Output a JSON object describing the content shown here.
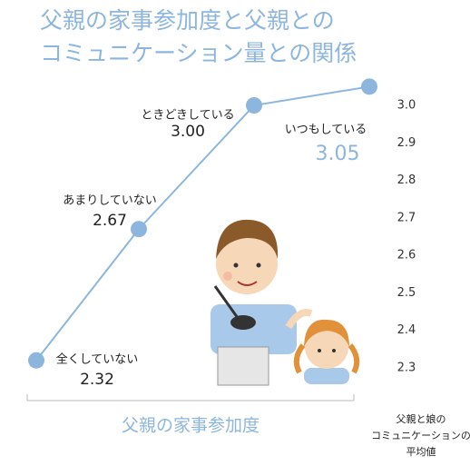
{
  "chart_data": {
    "type": "line",
    "title": [
      "父親の家事参加度と父親との",
      "コミュニケーション量との関係"
    ],
    "categories": [
      "全くしていない",
      "あまりしていない",
      "ときどきしている",
      "いつもしている"
    ],
    "values": [
      2.32,
      2.67,
      3.0,
      3.05
    ],
    "value_labels": [
      "2.32",
      "2.67",
      "3.00",
      "3.05"
    ],
    "color": "#8db6de",
    "ylim": [
      2.25,
      3.1
    ],
    "yticks": [
      2.3,
      2.4,
      2.5,
      2.6,
      2.7,
      2.8,
      2.9,
      {
        "value": 3,
        "label": "3.0"
      }
    ],
    "xlabel": "父親の家事参加度",
    "ylabel": [
      "父親と娘の",
      "コミュニケーションの",
      "平均値"
    ]
  }
}
